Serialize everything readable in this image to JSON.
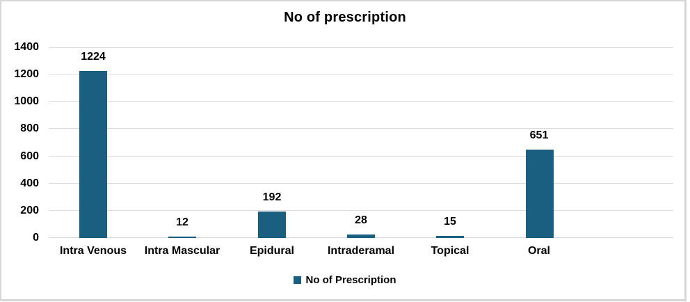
{
  "window": {
    "background": "#ffffff",
    "border_color": "#d6d6d6"
  },
  "chart_data": {
    "type": "bar",
    "title": "No of prescription",
    "series_name": "No of Prescription",
    "categories": [
      "Intra Venous",
      "Intra Mascular",
      "Epidural",
      "Intraderamal",
      "Topical",
      "Oral"
    ],
    "values": [
      1224,
      12,
      192,
      28,
      15,
      651
    ],
    "xlabel": "",
    "ylabel": "",
    "ylim": [
      0,
      1400
    ],
    "yticks": [
      0,
      200,
      400,
      600,
      800,
      1000,
      1200,
      1400
    ],
    "grid": true,
    "gridline_color": "#d9d9d9",
    "bar_color": "#1a5f80",
    "text_color": "#000000",
    "legend_position": "bottom",
    "trailing_blank_slot": true
  }
}
